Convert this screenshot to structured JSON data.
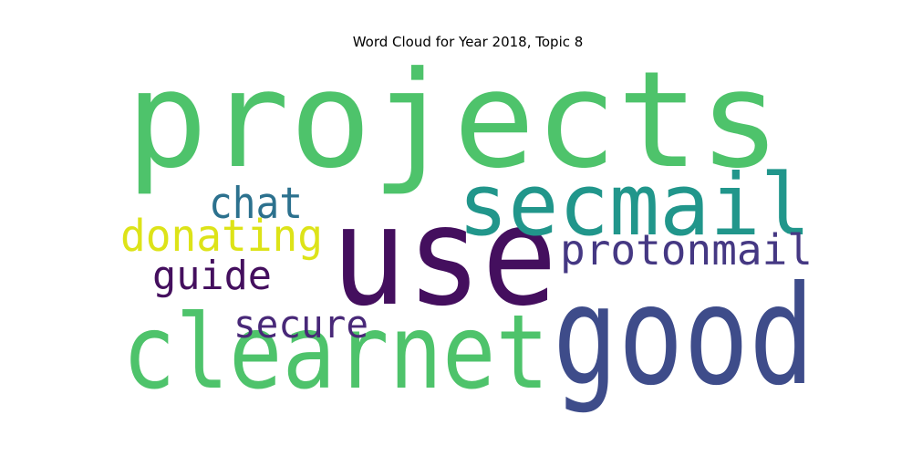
{
  "chart_data": {
    "type": "wordcloud",
    "title": "Word Cloud for Year 2018, Topic 8",
    "words": [
      {
        "text": "projects",
        "color": "#4ec36b"
      },
      {
        "text": "use",
        "color": "#440f5e"
      },
      {
        "text": "good",
        "color": "#3e4c8a"
      },
      {
        "text": "clearnet",
        "color": "#4ec36b"
      },
      {
        "text": "secmail",
        "color": "#21968b"
      },
      {
        "text": "protonmail",
        "color": "#453883"
      },
      {
        "text": "chat",
        "color": "#2c718e"
      },
      {
        "text": "donating",
        "color": "#dde318"
      },
      {
        "text": "guide",
        "color": "#440f5e"
      },
      {
        "text": "secure",
        "color": "#482878"
      }
    ]
  }
}
